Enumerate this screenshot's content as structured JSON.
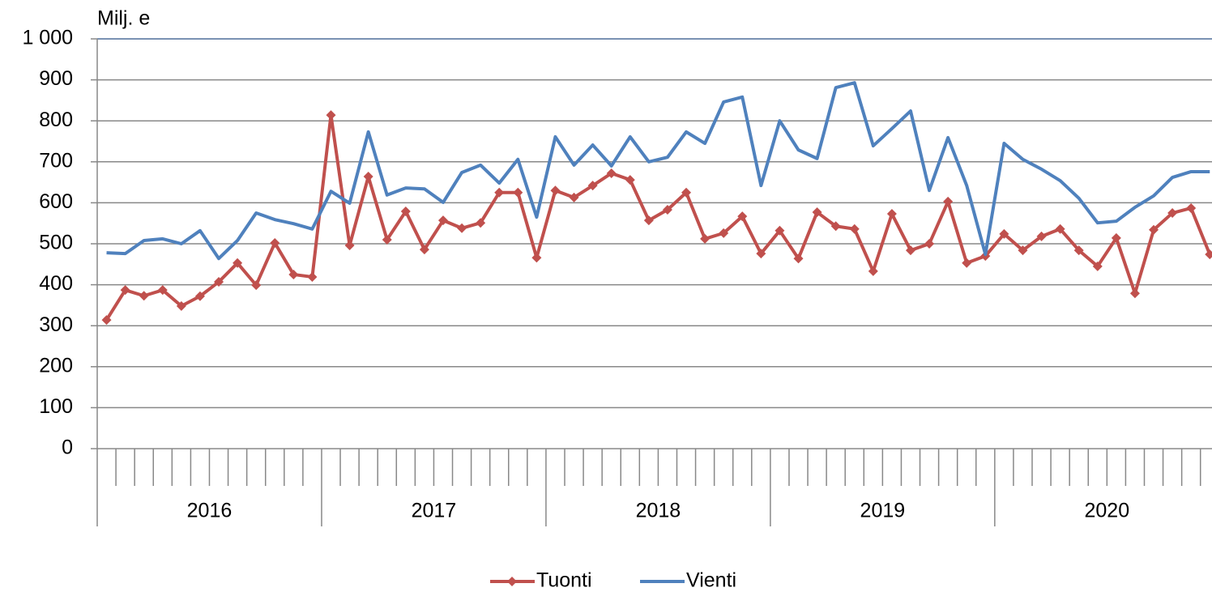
{
  "chart_data": {
    "type": "line",
    "y_label": "Milj. e",
    "categories": [
      null,
      null,
      null,
      null,
      null,
      null,
      null,
      null,
      null,
      null,
      null,
      null,
      null,
      null,
      null,
      null,
      null,
      null,
      null,
      null,
      null,
      null,
      null,
      null,
      null,
      null,
      null,
      null,
      null,
      null,
      null,
      null,
      null,
      null,
      null,
      null,
      null,
      null,
      null,
      null,
      null,
      null,
      null,
      null,
      null,
      null,
      null,
      null,
      null,
      null,
      null,
      null,
      null,
      null,
      null,
      null,
      null,
      null,
      null,
      null
    ],
    "category_groups": [
      "2016",
      "2017",
      "2018",
      "2019",
      "2020"
    ],
    "series": [
      {
        "name": "Tuonti",
        "color": "#c0504d",
        "marker": "diamond",
        "values": [
          314,
          387,
          373,
          387,
          348,
          372,
          407,
          453,
          399,
          502,
          425,
          419,
          814,
          496,
          664,
          510,
          579,
          486,
          557,
          538,
          551,
          625,
          625,
          466,
          630,
          613,
          642,
          672,
          656,
          557,
          583,
          625,
          512,
          526,
          567,
          476,
          532,
          464,
          577,
          543,
          536,
          433,
          573,
          484,
          500,
          603,
          453,
          470,
          524,
          484,
          518,
          536,
          484,
          445,
          514,
          379,
          534,
          575,
          587,
          474
        ]
      },
      {
        "name": "Vienti",
        "color": "#4f81bd",
        "values": [
          478,
          476,
          508,
          512,
          500,
          532,
          464,
          508,
          575,
          559,
          549,
          536,
          628,
          599,
          773,
          619,
          636,
          634,
          601,
          674,
          692,
          648,
          706,
          565,
          761,
          692,
          741,
          690,
          761,
          700,
          711,
          773,
          745,
          846,
          858,
          642,
          800,
          729,
          708,
          881,
          893,
          739,
          781,
          824,
          630,
          759,
          642,
          474,
          745,
          706,
          682,
          654,
          611,
          551,
          555,
          589,
          617,
          662,
          676,
          676
        ]
      }
    ],
    "ylim": [
      0,
      1000
    ],
    "yticks": [
      0,
      100,
      200,
      300,
      400,
      500,
      600,
      700,
      800,
      900,
      {
        "value": 1000,
        "label": "1 000"
      }
    ],
    "grid": true,
    "legend": "bottom"
  }
}
